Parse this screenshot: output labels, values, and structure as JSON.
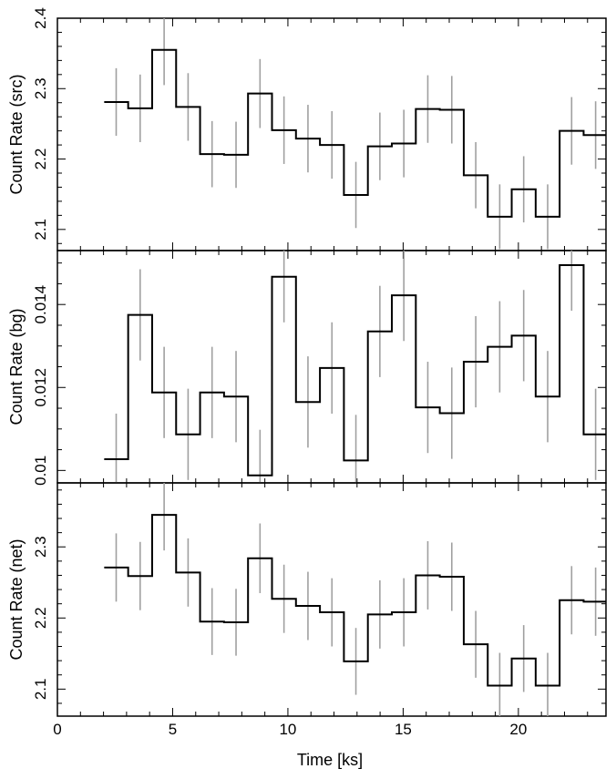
{
  "chart_data": {
    "type": "line",
    "style": "step histogram with vertical error bars, three vertically stacked panels sharing the time axis",
    "xlabel": "Time [ks]",
    "xlim": [
      0,
      23.8
    ],
    "xticks": [
      0,
      5,
      10,
      15,
      20
    ],
    "bin_width_ks": 1.04,
    "x": [
      2.55,
      3.59,
      4.63,
      5.67,
      6.71,
      7.75,
      8.79,
      9.83,
      10.87,
      11.91,
      12.95,
      13.99,
      15.03,
      16.07,
      17.11,
      18.15,
      19.19,
      20.23,
      21.27,
      22.31,
      23.35
    ],
    "panels": [
      {
        "ylabel": "Count Rate (src)",
        "ylim": [
          2.07,
          2.4
        ],
        "yticks": [
          "2.1",
          "2.2",
          "2.3",
          "2.4"
        ],
        "values": [
          2.281,
          2.272,
          2.355,
          2.274,
          2.207,
          2.206,
          2.293,
          2.241,
          2.229,
          2.22,
          2.149,
          2.218,
          2.222,
          2.271,
          2.27,
          2.177,
          2.118,
          2.157,
          2.118,
          2.24,
          2.234
        ],
        "errors": [
          0.048,
          0.048,
          0.05,
          0.048,
          0.047,
          0.047,
          0.049,
          0.048,
          0.048,
          0.048,
          0.047,
          0.048,
          0.048,
          0.048,
          0.048,
          0.047,
          0.046,
          0.047,
          0.046,
          0.048,
          0.048
        ]
      },
      {
        "ylabel": "Count Rate (bg)",
        "ylim": [
          0.0097,
          0.0153
        ],
        "yticks": [
          "0.01",
          "0.012",
          "0.014"
        ],
        "values": [
          0.01027,
          0.01375,
          0.01188,
          0.01087,
          0.01188,
          0.01178,
          0.00988,
          0.01467,
          0.01165,
          0.01247,
          0.01024,
          0.01335,
          0.01422,
          0.01152,
          0.01138,
          0.01262,
          0.01298,
          0.01325,
          0.01178,
          0.01495,
          0.01087
        ],
        "errors": [
          0.0011,
          0.0011,
          0.0011,
          0.0011,
          0.0011,
          0.0011,
          0.0011,
          0.0011,
          0.0011,
          0.0011,
          0.0011,
          0.0011,
          0.0011,
          0.0011,
          0.0011,
          0.0011,
          0.0011,
          0.0011,
          0.0011,
          0.0011,
          0.0011
        ]
      },
      {
        "ylabel": "Count Rate (net)",
        "ylim": [
          2.062,
          2.39
        ],
        "yticks": [
          "2.1",
          "2.2",
          "2.3"
        ],
        "values": [
          2.271,
          2.259,
          2.345,
          2.264,
          2.195,
          2.194,
          2.284,
          2.227,
          2.217,
          2.208,
          2.139,
          2.205,
          2.208,
          2.26,
          2.258,
          2.163,
          2.105,
          2.143,
          2.105,
          2.225,
          2.223
        ],
        "errors": [
          0.048,
          0.048,
          0.05,
          0.048,
          0.047,
          0.047,
          0.049,
          0.048,
          0.048,
          0.048,
          0.047,
          0.048,
          0.048,
          0.048,
          0.048,
          0.047,
          0.046,
          0.047,
          0.046,
          0.048,
          0.048
        ]
      }
    ],
    "colors": {
      "step": "#000000",
      "errorbar": "#a0a0a0",
      "frame": "#000000"
    },
    "grid": false,
    "legend": "none"
  }
}
